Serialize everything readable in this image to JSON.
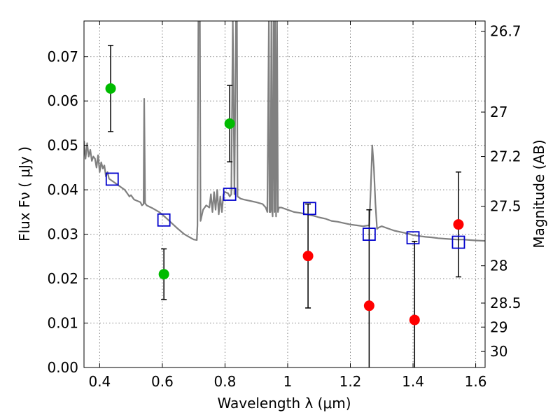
{
  "chart_data": {
    "type": "scatter",
    "title": "",
    "xlabel": "Wavelength  λ (μm)",
    "ylabel": "Flux  Fν  ( μJy )",
    "ylabel_right": "Magnitude (AB)",
    "xlim": [
      0.35,
      1.63
    ],
    "ylim": [
      0.0,
      0.078
    ],
    "grid": true,
    "x_ticks": [
      0.4,
      0.6,
      0.8,
      1.0,
      1.2,
      1.4,
      1.6
    ],
    "x_tick_labels": [
      "0.4",
      "0.6",
      "0.8",
      "1",
      "1.2",
      "1.4",
      "1.6"
    ],
    "y_ticks": [
      0.0,
      0.01,
      0.02,
      0.03,
      0.04,
      0.05,
      0.06,
      0.07
    ],
    "y_tick_labels": [
      "0.00",
      "0.01",
      "0.02",
      "0.03",
      "0.04",
      "0.05",
      "0.06",
      "0.07"
    ],
    "right_ticks": [
      {
        "flux": 0.0757,
        "label": "26.7"
      },
      {
        "flux": 0.0575,
        "label": "27"
      },
      {
        "flux": 0.0475,
        "label": "27.2"
      },
      {
        "flux": 0.0363,
        "label": "27.5"
      },
      {
        "flux": 0.0229,
        "label": "28"
      },
      {
        "flux": 0.0145,
        "label": "28.5"
      },
      {
        "flux": 0.0091,
        "label": "29"
      },
      {
        "flux": 0.0036,
        "label": "30"
      }
    ],
    "colors": {
      "green": "#00bb00",
      "red": "#ff0000",
      "blue": "#0000cc",
      "model": "#808080",
      "errorbar": "#000000",
      "grid": "#808080"
    },
    "series": [
      {
        "marker": "filled-circle",
        "color": "green",
        "points": [
          {
            "x": 0.435,
            "y": 0.0628,
            "err": 0.0097
          },
          {
            "x": 0.605,
            "y": 0.021,
            "err": 0.0057
          },
          {
            "x": 0.815,
            "y": 0.0549,
            "err": 0.0086
          }
        ]
      },
      {
        "marker": "filled-circle",
        "color": "red",
        "points": [
          {
            "x": 1.065,
            "y": 0.0251,
            "err": 0.0117
          },
          {
            "x": 1.26,
            "y": 0.0139,
            "err": 0.0216
          },
          {
            "x": 1.405,
            "y": 0.0107,
            "err": 0.0177
          },
          {
            "x": 1.545,
            "y": 0.0322,
            "err": 0.0118
          }
        ]
      },
      {
        "marker": "open-square",
        "color": "blue",
        "points": [
          {
            "x": 0.44,
            "y": 0.0424
          },
          {
            "x": 0.605,
            "y": 0.0332
          },
          {
            "x": 0.815,
            "y": 0.039
          },
          {
            "x": 1.07,
            "y": 0.0358
          },
          {
            "x": 1.26,
            "y": 0.03
          },
          {
            "x": 1.4,
            "y": 0.0292
          },
          {
            "x": 1.545,
            "y": 0.0282
          }
        ]
      }
    ],
    "model_curve": {
      "color": "model",
      "points": [
        [
          0.35,
          0.051
        ],
        [
          0.355,
          0.047
        ],
        [
          0.36,
          0.0505
        ],
        [
          0.365,
          0.0475
        ],
        [
          0.37,
          0.049
        ],
        [
          0.375,
          0.0465
        ],
        [
          0.38,
          0.0475
        ],
        [
          0.385,
          0.047
        ],
        [
          0.39,
          0.045
        ],
        [
          0.395,
          0.0478
        ],
        [
          0.4,
          0.044
        ],
        [
          0.405,
          0.0462
        ],
        [
          0.41,
          0.0448
        ],
        [
          0.415,
          0.0455
        ],
        [
          0.42,
          0.043
        ],
        [
          0.425,
          0.044
        ],
        [
          0.43,
          0.0425
        ],
        [
          0.44,
          0.042
        ],
        [
          0.45,
          0.0415
        ],
        [
          0.46,
          0.041
        ],
        [
          0.47,
          0.0405
        ],
        [
          0.48,
          0.04
        ],
        [
          0.49,
          0.039
        ],
        [
          0.495,
          0.0385
        ],
        [
          0.5,
          0.0388
        ],
        [
          0.51,
          0.0378
        ],
        [
          0.52,
          0.0375
        ],
        [
          0.53,
          0.0372
        ],
        [
          0.535,
          0.0365
        ],
        [
          0.54,
          0.0368
        ],
        [
          0.542,
          0.0605
        ],
        [
          0.545,
          0.037
        ],
        [
          0.55,
          0.0365
        ],
        [
          0.57,
          0.0358
        ],
        [
          0.59,
          0.035
        ],
        [
          0.61,
          0.0338
        ],
        [
          0.63,
          0.0325
        ],
        [
          0.65,
          0.0312
        ],
        [
          0.67,
          0.03
        ],
        [
          0.69,
          0.0292
        ],
        [
          0.7,
          0.0288
        ],
        [
          0.71,
          0.0287
        ],
        [
          0.712,
          0.032
        ],
        [
          0.715,
          0.078
        ],
        [
          0.72,
          0.078
        ],
        [
          0.722,
          0.033
        ],
        [
          0.73,
          0.0355
        ],
        [
          0.74,
          0.0365
        ],
        [
          0.75,
          0.036
        ],
        [
          0.755,
          0.039
        ],
        [
          0.76,
          0.035
        ],
        [
          0.765,
          0.0395
        ],
        [
          0.77,
          0.0355
        ],
        [
          0.775,
          0.04
        ],
        [
          0.78,
          0.0345
        ],
        [
          0.785,
          0.0385
        ],
        [
          0.79,
          0.035
        ],
        [
          0.795,
          0.039
        ],
        [
          0.8,
          0.0395
        ],
        [
          0.81,
          0.0392
        ],
        [
          0.815,
          0.0385
        ],
        [
          0.82,
          0.039
        ],
        [
          0.825,
          0.078
        ],
        [
          0.83,
          0.039
        ],
        [
          0.835,
          0.078
        ],
        [
          0.838,
          0.078
        ],
        [
          0.84,
          0.0385
        ],
        [
          0.85,
          0.038
        ],
        [
          0.86,
          0.0378
        ],
        [
          0.88,
          0.0375
        ],
        [
          0.9,
          0.0372
        ],
        [
          0.92,
          0.0368
        ],
        [
          0.93,
          0.036
        ],
        [
          0.935,
          0.035
        ],
        [
          0.94,
          0.078
        ],
        [
          0.942,
          0.035
        ],
        [
          0.945,
          0.035
        ],
        [
          0.948,
          0.078
        ],
        [
          0.95,
          0.0355
        ],
        [
          0.952,
          0.034
        ],
        [
          0.955,
          0.078
        ],
        [
          0.958,
          0.035
        ],
        [
          0.96,
          0.078
        ],
        [
          0.963,
          0.034
        ],
        [
          0.966,
          0.078
        ],
        [
          0.969,
          0.035
        ],
        [
          0.972,
          0.036
        ],
        [
          0.98,
          0.036
        ],
        [
          1.0,
          0.0355
        ],
        [
          1.02,
          0.035
        ],
        [
          1.04,
          0.0348
        ],
        [
          1.06,
          0.0345
        ],
        [
          1.08,
          0.0342
        ],
        [
          1.1,
          0.0338
        ],
        [
          1.12,
          0.0335
        ],
        [
          1.14,
          0.033
        ],
        [
          1.16,
          0.0328
        ],
        [
          1.18,
          0.0325
        ],
        [
          1.2,
          0.0322
        ],
        [
          1.22,
          0.032
        ],
        [
          1.24,
          0.0318
        ],
        [
          1.26,
          0.032
        ],
        [
          1.265,
          0.04
        ],
        [
          1.27,
          0.05
        ],
        [
          1.275,
          0.045
        ],
        [
          1.28,
          0.037
        ],
        [
          1.285,
          0.0312
        ],
        [
          1.29,
          0.0315
        ],
        [
          1.3,
          0.0318
        ],
        [
          1.32,
          0.0313
        ],
        [
          1.34,
          0.0308
        ],
        [
          1.36,
          0.0305
        ],
        [
          1.38,
          0.0302
        ],
        [
          1.4,
          0.0298
        ],
        [
          1.42,
          0.0296
        ],
        [
          1.44,
          0.0294
        ],
        [
          1.46,
          0.0293
        ],
        [
          1.48,
          0.0291
        ],
        [
          1.5,
          0.029
        ],
        [
          1.52,
          0.0289
        ],
        [
          1.54,
          0.0288
        ],
        [
          1.56,
          0.0288
        ],
        [
          1.58,
          0.0287
        ],
        [
          1.6,
          0.0286
        ],
        [
          1.63,
          0.0285
        ]
      ]
    }
  }
}
